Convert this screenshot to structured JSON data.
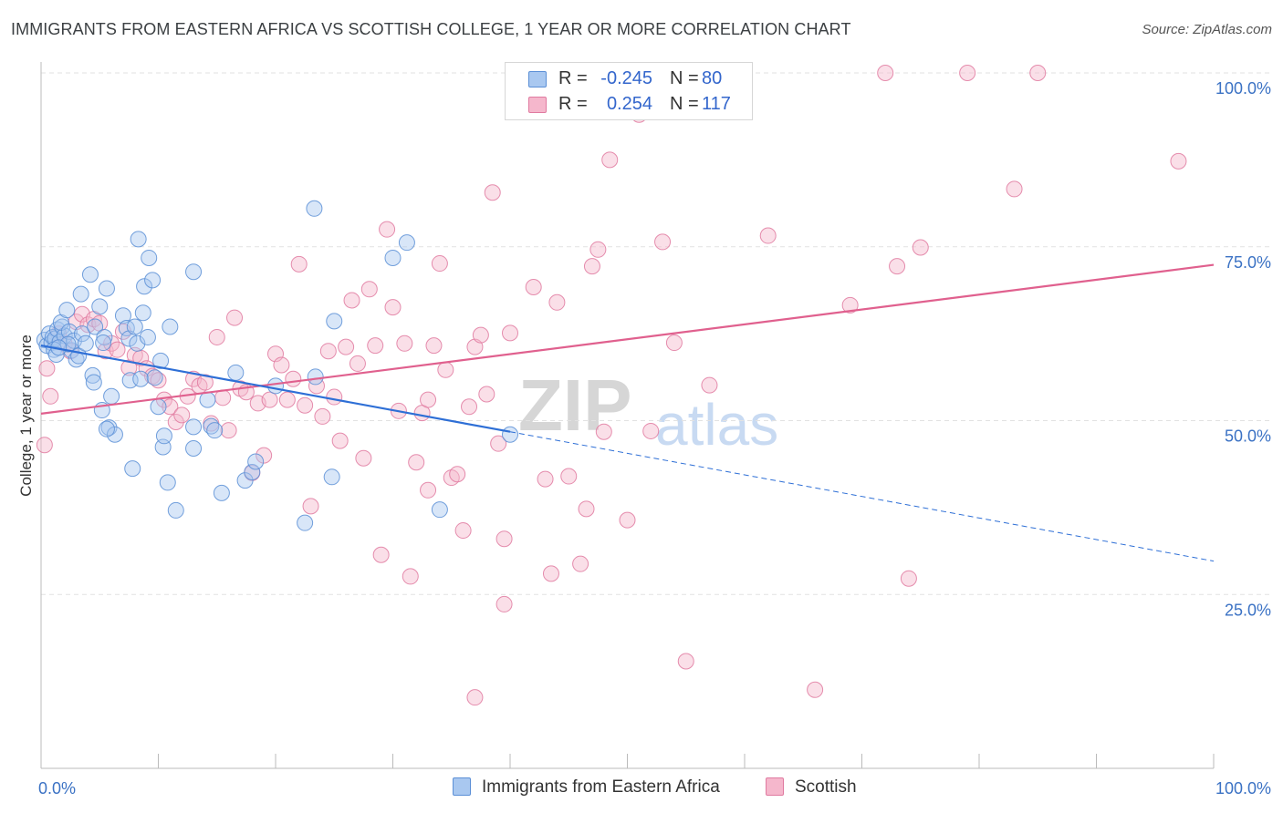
{
  "title": "IMMIGRANTS FROM EASTERN AFRICA VS SCOTTISH COLLEGE, 1 YEAR OR MORE CORRELATION CHART",
  "source": "Source: ZipAtlas.com",
  "watermark": {
    "zip": "ZIP",
    "atlas": "atlas"
  },
  "legend_top": {
    "rows": [
      {
        "r_label": "R =",
        "r_value": "-0.245",
        "n_label": "N =",
        "n_value": "80"
      },
      {
        "r_label": "R =",
        "r_value": "0.254",
        "n_label": "N =",
        "n_value": "117"
      }
    ]
  },
  "legend_bottom": {
    "series1": "Immigrants from Eastern Africa",
    "series2": "Scottish"
  },
  "colors": {
    "blue_fill": "#a9c8f0",
    "blue_stroke": "#5b8fd6",
    "blue_line": "#2e6fd6",
    "pink_fill": "#f5b7cc",
    "pink_stroke": "#e07aa0",
    "pink_line": "#e0608e",
    "tick_label": "#3b72c4",
    "grid": "#e2e2e2"
  },
  "chart_data": {
    "type": "scatter",
    "title": "IMMIGRANTS FROM EASTERN AFRICA VS SCOTTISH COLLEGE, 1 YEAR OR MORE CORRELATION CHART",
    "xlabel": "",
    "ylabel": "College, 1 year or more",
    "xlim": [
      0,
      100
    ],
    "ylim": [
      0,
      100
    ],
    "x_tick_labels": [
      "0.0%",
      "100.0%"
    ],
    "y_tick_labels": [
      "25.0%",
      "50.0%",
      "75.0%",
      "100.0%"
    ],
    "y_ticks": [
      25,
      50,
      75,
      100
    ],
    "grid": true,
    "legend": "bottom",
    "series": [
      {
        "name": "Immigrants from Eastern Africa",
        "color": "#a9c8f0",
        "r": -0.245,
        "n": 80,
        "trend": {
          "x": [
            0,
            40
          ],
          "y": [
            60.8,
            48.4
          ],
          "dashed_to": [
            100,
            29.8
          ]
        },
        "points": [
          [
            0.3,
            61.6
          ],
          [
            0.5,
            60.8
          ],
          [
            0.7,
            62.5
          ],
          [
            0.9,
            61.2
          ],
          [
            1.0,
            62.0
          ],
          [
            1.2,
            61.8
          ],
          [
            1.4,
            63.1
          ],
          [
            1.6,
            61.3
          ],
          [
            1.8,
            63.5
          ],
          [
            2.0,
            62.2
          ],
          [
            1.1,
            60.2
          ],
          [
            1.3,
            59.5
          ],
          [
            1.7,
            64.1
          ],
          [
            2.2,
            65.9
          ],
          [
            2.4,
            62.8
          ],
          [
            2.6,
            60.1
          ],
          [
            2.8,
            61.5
          ],
          [
            3.0,
            58.8
          ],
          [
            3.2,
            59.3
          ],
          [
            3.5,
            62.5
          ],
          [
            3.8,
            61.1
          ],
          [
            2.3,
            61.0
          ],
          [
            1.5,
            60.5
          ],
          [
            3.4,
            68.2
          ],
          [
            4.2,
            71.0
          ],
          [
            4.6,
            63.5
          ],
          [
            5.0,
            66.4
          ],
          [
            5.4,
            62.0
          ],
          [
            5.6,
            69.0
          ],
          [
            5.3,
            61.2
          ],
          [
            4.4,
            56.5
          ],
          [
            4.5,
            55.5
          ],
          [
            5.2,
            51.5
          ],
          [
            6.0,
            53.5
          ],
          [
            5.8,
            49.0
          ],
          [
            6.3,
            48.0
          ],
          [
            5.6,
            48.8
          ],
          [
            7.0,
            65.1
          ],
          [
            7.3,
            63.3
          ],
          [
            7.5,
            61.8
          ],
          [
            8.0,
            63.5
          ],
          [
            8.3,
            76.1
          ],
          [
            8.8,
            69.3
          ],
          [
            8.7,
            65.5
          ],
          [
            8.2,
            61.1
          ],
          [
            9.2,
            73.4
          ],
          [
            9.5,
            70.2
          ],
          [
            9.1,
            62.0
          ],
          [
            7.6,
            55.8
          ],
          [
            8.5,
            56.0
          ],
          [
            9.7,
            56.2
          ],
          [
            10.2,
            58.6
          ],
          [
            10.0,
            52.0
          ],
          [
            10.4,
            46.2
          ],
          [
            10.5,
            47.8
          ],
          [
            7.8,
            43.1
          ],
          [
            10.8,
            41.1
          ],
          [
            11.0,
            63.5
          ],
          [
            11.5,
            37.1
          ],
          [
            13.0,
            71.4
          ],
          [
            13.0,
            46.0
          ],
          [
            13.0,
            49.1
          ],
          [
            14.2,
            53.0
          ],
          [
            14.5,
            49.2
          ],
          [
            14.8,
            48.6
          ],
          [
            15.4,
            39.6
          ],
          [
            16.6,
            56.9
          ],
          [
            17.4,
            41.4
          ],
          [
            18.0,
            42.6
          ],
          [
            18.3,
            44.1
          ],
          [
            22.5,
            35.3
          ],
          [
            23.3,
            80.5
          ],
          [
            23.4,
            56.3
          ],
          [
            24.8,
            41.9
          ],
          [
            25.0,
            64.3
          ],
          [
            30.0,
            73.4
          ],
          [
            31.2,
            75.6
          ],
          [
            34.0,
            37.2
          ],
          [
            40.0,
            48.0
          ],
          [
            20.0,
            55.0
          ]
        ]
      },
      {
        "name": "Scottish",
        "color": "#f5b7cc",
        "r": 0.254,
        "n": 117,
        "trend": {
          "x": [
            0,
            100
          ],
          "y": [
            51.0,
            72.4
          ]
        },
        "points": [
          [
            0.5,
            57.5
          ],
          [
            0.8,
            53.5
          ],
          [
            0.3,
            46.5
          ],
          [
            1.5,
            62.5
          ],
          [
            2.0,
            61.0
          ],
          [
            2.5,
            60.0
          ],
          [
            3.0,
            64.2
          ],
          [
            3.5,
            65.3
          ],
          [
            4.0,
            63.8
          ],
          [
            4.5,
            64.6
          ],
          [
            5.0,
            64.0
          ],
          [
            5.5,
            60.0
          ],
          [
            6.0,
            61.1
          ],
          [
            6.5,
            60.2
          ],
          [
            7.0,
            62.8
          ],
          [
            7.5,
            57.6
          ],
          [
            8.0,
            59.4
          ],
          [
            8.5,
            59.0
          ],
          [
            9.0,
            57.5
          ],
          [
            9.5,
            56.4
          ],
          [
            10.0,
            55.8
          ],
          [
            10.5,
            53.0
          ],
          [
            11.0,
            52.0
          ],
          [
            11.5,
            49.8
          ],
          [
            12.0,
            50.8
          ],
          [
            12.5,
            53.5
          ],
          [
            13.0,
            56.0
          ],
          [
            13.5,
            55.0
          ],
          [
            14.0,
            55.5
          ],
          [
            14.5,
            49.6
          ],
          [
            15.0,
            62.0
          ],
          [
            15.5,
            53.3
          ],
          [
            16.0,
            48.6
          ],
          [
            16.5,
            64.8
          ],
          [
            17.0,
            54.6
          ],
          [
            17.5,
            54.1
          ],
          [
            18.0,
            42.5
          ],
          [
            18.5,
            52.5
          ],
          [
            19.0,
            45.0
          ],
          [
            19.5,
            53.0
          ],
          [
            20.0,
            59.6
          ],
          [
            20.5,
            58.0
          ],
          [
            21.0,
            53.0
          ],
          [
            21.5,
            56.0
          ],
          [
            22.0,
            72.5
          ],
          [
            22.5,
            52.2
          ],
          [
            23.0,
            37.7
          ],
          [
            23.5,
            55.0
          ],
          [
            24.0,
            50.6
          ],
          [
            24.5,
            60.0
          ],
          [
            25.0,
            53.4
          ],
          [
            25.5,
            47.1
          ],
          [
            26.0,
            60.6
          ],
          [
            26.5,
            67.3
          ],
          [
            27.0,
            58.2
          ],
          [
            27.5,
            44.6
          ],
          [
            28.0,
            68.9
          ],
          [
            28.5,
            60.8
          ],
          [
            29.0,
            30.7
          ],
          [
            29.5,
            77.5
          ],
          [
            30.0,
            66.3
          ],
          [
            30.5,
            51.4
          ],
          [
            31.0,
            61.1
          ],
          [
            31.5,
            27.6
          ],
          [
            32.0,
            44.0
          ],
          [
            32.5,
            51.1
          ],
          [
            33.0,
            53.0
          ],
          [
            33.5,
            60.8
          ],
          [
            34.0,
            72.6
          ],
          [
            34.5,
            57.3
          ],
          [
            35.0,
            41.8
          ],
          [
            35.5,
            42.3
          ],
          [
            36.0,
            34.2
          ],
          [
            36.5,
            52.0
          ],
          [
            37.0,
            60.6
          ],
          [
            37.5,
            62.3
          ],
          [
            38.0,
            53.8
          ],
          [
            38.5,
            82.8
          ],
          [
            39.0,
            46.7
          ],
          [
            39.5,
            33.0
          ],
          [
            40.0,
            62.6
          ],
          [
            41.0,
            94.4
          ],
          [
            42.0,
            69.2
          ],
          [
            43.0,
            41.6
          ],
          [
            43.5,
            28.0
          ],
          [
            44.0,
            67.0
          ],
          [
            45.0,
            42.0
          ],
          [
            46.0,
            29.4
          ],
          [
            46.5,
            37.3
          ],
          [
            47.0,
            72.2
          ],
          [
            47.5,
            74.6
          ],
          [
            48.0,
            48.4
          ],
          [
            48.5,
            87.5
          ],
          [
            49.0,
            99.5
          ],
          [
            50.0,
            35.7
          ],
          [
            51.0,
            94.0
          ],
          [
            52.0,
            48.5
          ],
          [
            53.0,
            75.7
          ],
          [
            54.0,
            61.2
          ],
          [
            55.0,
            15.4
          ],
          [
            57.0,
            55.1
          ],
          [
            59.0,
            100.0
          ],
          [
            60.0,
            99.5
          ],
          [
            62.0,
            76.6
          ],
          [
            66.0,
            11.3
          ],
          [
            69.0,
            66.6
          ],
          [
            72.0,
            100.0
          ],
          [
            73.0,
            72.2
          ],
          [
            75.0,
            74.9
          ],
          [
            74.0,
            27.3
          ],
          [
            79.0,
            100.0
          ],
          [
            83.0,
            83.3
          ],
          [
            85.0,
            100.0
          ],
          [
            97.0,
            87.3
          ],
          [
            37.0,
            10.2
          ],
          [
            33.0,
            40.0
          ],
          [
            39.5,
            23.6
          ]
        ]
      }
    ]
  }
}
